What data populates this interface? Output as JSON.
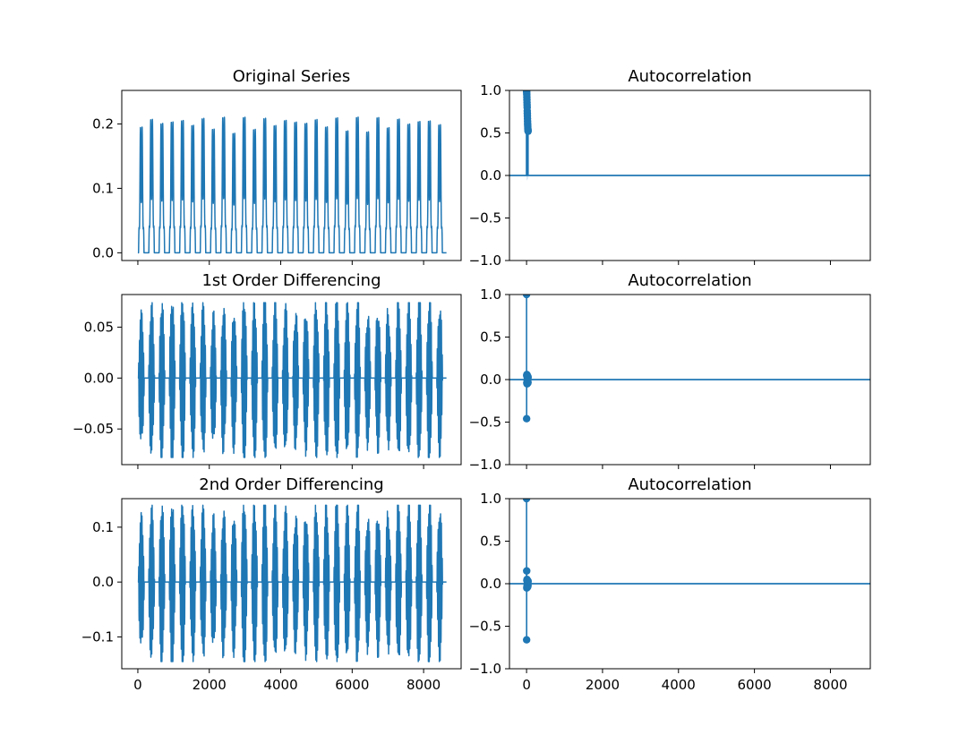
{
  "colors": {
    "series": "#1f77b4",
    "confidence_band": "#c6d9ec",
    "axes": "#000000"
  },
  "chart_data": [
    {
      "type": "line",
      "title": "Original Series",
      "position": "row-1-left",
      "xlim": [
        -450,
        9050
      ],
      "ylim": [
        -0.012,
        0.252
      ],
      "x_ticks": [
        0,
        2000,
        4000,
        6000,
        8000
      ],
      "x_tick_labels_shown": false,
      "y_ticks": [
        0.0,
        0.1,
        0.2
      ],
      "y_tick_labels": [
        "0.0",
        "0.1",
        "0.2"
      ],
      "series": [
        {
          "x_start": 0,
          "x_end": 8640,
          "cycles": 30,
          "min": 0.0,
          "max": 0.24,
          "shape": "daily-pulse"
        }
      ]
    },
    {
      "type": "bar",
      "subtype": "acf-stem",
      "title": "Autocorrelation",
      "position": "row-1-right",
      "xlim": [
        -450,
        9050
      ],
      "ylim": [
        -1.0,
        1.0
      ],
      "x_ticks": [
        0,
        2000,
        4000,
        6000,
        8000
      ],
      "x_tick_labels_shown": false,
      "y_ticks": [
        -1.0,
        -0.5,
        0.0,
        0.5,
        1.0
      ],
      "y_tick_labels": [
        "−1.0",
        "−0.5",
        "0.0",
        "0.5",
        "1.0"
      ],
      "lags": [
        0,
        2,
        4,
        6,
        8,
        10,
        12,
        14,
        16,
        18,
        20,
        22,
        24,
        26,
        28,
        30,
        32,
        34,
        36,
        38,
        40
      ],
      "values": [
        1.0,
        0.99,
        0.97,
        0.95,
        0.92,
        0.89,
        0.86,
        0.83,
        0.8,
        0.76,
        0.73,
        0.7,
        0.67,
        0.64,
        0.61,
        0.59,
        0.57,
        0.55,
        0.54,
        0.53,
        0.52
      ]
    },
    {
      "type": "line",
      "title": "1st Order Differencing",
      "position": "row-2-left",
      "xlim": [
        -450,
        9050
      ],
      "ylim": [
        -0.085,
        0.082
      ],
      "x_ticks": [
        0,
        2000,
        4000,
        6000,
        8000
      ],
      "x_tick_labels_shown": false,
      "y_ticks": [
        -0.05,
        0.0,
        0.05
      ],
      "y_tick_labels": [
        "−0.05",
        "0.00",
        "0.05"
      ],
      "series": [
        {
          "x_start": 0,
          "x_end": 8640,
          "cycles": 30,
          "min": -0.078,
          "max": 0.074,
          "shape": "oscillating-burst"
        }
      ]
    },
    {
      "type": "bar",
      "subtype": "acf-stem",
      "title": "Autocorrelation",
      "position": "row-2-right",
      "xlim": [
        -450,
        9050
      ],
      "ylim": [
        -1.0,
        1.0
      ],
      "x_ticks": [
        0,
        2000,
        4000,
        6000,
        8000
      ],
      "x_tick_labels_shown": false,
      "y_ticks": [
        -1.0,
        -0.5,
        0.0,
        0.5,
        1.0
      ],
      "y_tick_labels": [
        "−1.0",
        "−0.5",
        "0.0",
        "0.5",
        "1.0"
      ],
      "lags": [
        0,
        2,
        4,
        6,
        8,
        10,
        12,
        14,
        16,
        18,
        20,
        22,
        24,
        26,
        28,
        30,
        32,
        34,
        36,
        38,
        40
      ],
      "values": [
        1.0,
        -0.46,
        0.05,
        -0.04,
        0.06,
        -0.03,
        0.04,
        -0.05,
        0.03,
        -0.02,
        0.05,
        -0.04,
        0.02,
        -0.03,
        0.04,
        -0.02,
        0.03,
        -0.04,
        0.02,
        -0.03,
        0.03
      ]
    },
    {
      "type": "line",
      "title": "2nd Order Differencing",
      "position": "row-3-left",
      "xlim": [
        -450,
        9050
      ],
      "ylim": [
        -0.158,
        0.152
      ],
      "x_ticks": [
        0,
        2000,
        4000,
        6000,
        8000
      ],
      "x_tick_labels_shown": true,
      "x_tick_labels": [
        "0",
        "2000",
        "4000",
        "6000",
        "8000"
      ],
      "y_ticks": [
        -0.1,
        0.0,
        0.1
      ],
      "y_tick_labels": [
        "−0.1",
        "0.0",
        "0.1"
      ],
      "series": [
        {
          "x_start": 0,
          "x_end": 8640,
          "cycles": 30,
          "min": -0.145,
          "max": 0.14,
          "shape": "oscillating-burst"
        }
      ]
    },
    {
      "type": "bar",
      "subtype": "acf-stem",
      "title": "Autocorrelation",
      "position": "row-3-right",
      "xlim": [
        -450,
        9050
      ],
      "ylim": [
        -1.0,
        1.0
      ],
      "x_ticks": [
        0,
        2000,
        4000,
        6000,
        8000
      ],
      "x_tick_labels_shown": true,
      "x_tick_labels": [
        "0",
        "2000",
        "4000",
        "6000",
        "8000"
      ],
      "y_ticks": [
        -1.0,
        -0.5,
        0.0,
        0.5,
        1.0
      ],
      "y_tick_labels": [
        "−1.0",
        "−0.5",
        "0.0",
        "0.5",
        "1.0"
      ],
      "lags": [
        0,
        2,
        4,
        6,
        8,
        10,
        12,
        14,
        16,
        18,
        20,
        22,
        24,
        26,
        28,
        30,
        32,
        34,
        36,
        38,
        40
      ],
      "values": [
        1.0,
        -0.66,
        0.15,
        -0.05,
        0.04,
        -0.03,
        0.05,
        -0.04,
        0.03,
        -0.02,
        0.04,
        -0.03,
        0.02,
        -0.04,
        0.03,
        -0.02,
        0.03,
        -0.03,
        0.02,
        -0.02,
        0.03
      ]
    }
  ]
}
